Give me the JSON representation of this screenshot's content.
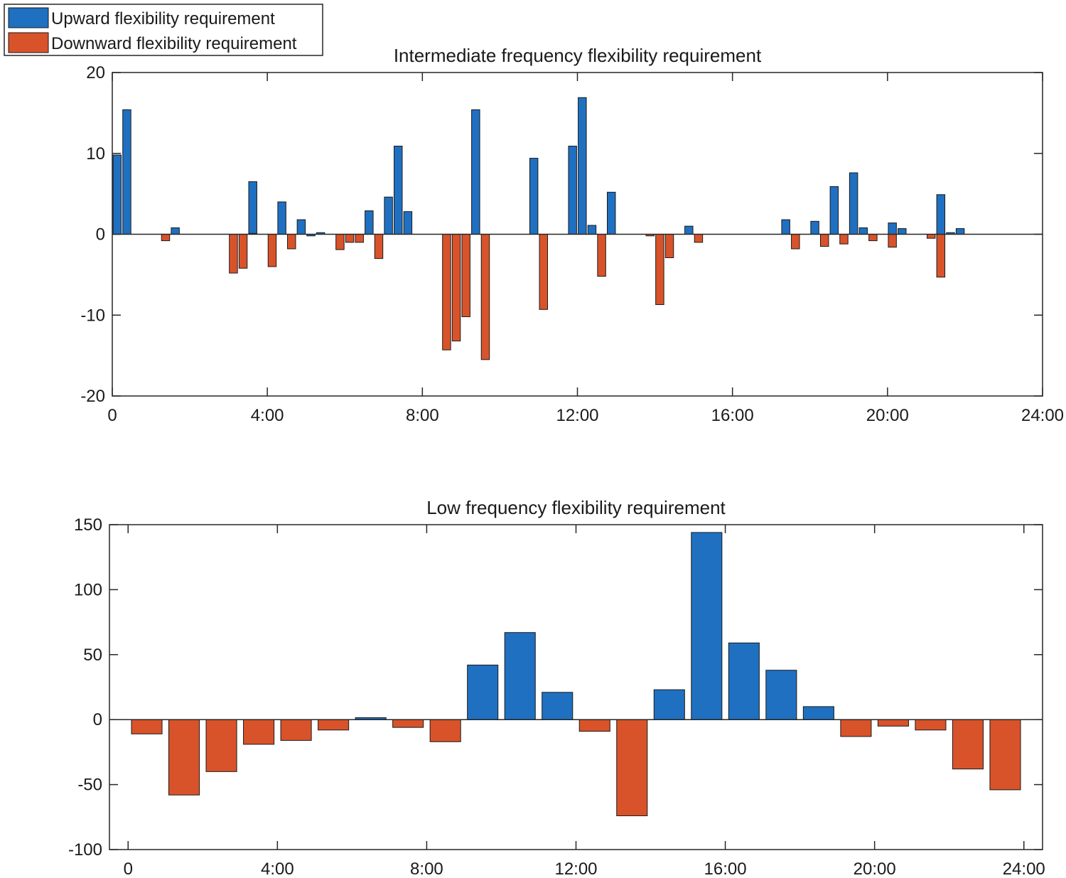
{
  "colors": {
    "up": "#1f70c1",
    "down": "#d9532a",
    "axis": "#262626",
    "bar_edge": "#1a1a1a"
  },
  "legend": {
    "entries": [
      {
        "label": "Upward flexibility requirement",
        "color": "#1f70c1"
      },
      {
        "label": "Downward flexibility requirement",
        "color": "#d9532a"
      }
    ],
    "placement": "top-left"
  },
  "chart_data": [
    {
      "type": "bar",
      "title": "Intermediate frequency flexibility requirement",
      "xlabel": "",
      "ylabel": "",
      "xlim": [
        0,
        24
      ],
      "ylim": [
        -20,
        20
      ],
      "yticks": [
        -20,
        -10,
        0,
        10,
        20
      ],
      "xticks": [
        0,
        4,
        8,
        12,
        16,
        20,
        24
      ],
      "xtick_labels": [
        "0",
        "4:00",
        "8:00",
        "12:00",
        "16:00",
        "20:00",
        "24:00"
      ],
      "bar_width_hours": 0.21,
      "series": [
        {
          "name": "Upward flexibility requirement",
          "x": [
            0.125,
            0.375,
            1.625,
            3.625,
            4.375,
            4.875,
            5.125,
            5.375,
            6.625,
            7.125,
            7.375,
            7.625,
            9.375,
            10.875,
            11.875,
            12.125,
            12.375,
            12.875,
            14.875,
            17.375,
            18.125,
            18.625,
            19.125,
            19.375,
            20.125,
            20.375,
            21.375,
            21.625,
            21.875
          ],
          "values": [
            9.8,
            15.4,
            0.8,
            6.5,
            4.0,
            1.8,
            -0.2,
            0.2,
            2.9,
            4.6,
            10.9,
            2.8,
            15.4,
            9.4,
            10.9,
            16.9,
            1.1,
            5.2,
            1.0,
            1.8,
            1.6,
            5.9,
            7.6,
            0.8,
            1.4,
            0.7,
            4.9,
            0.2,
            0.7
          ]
        },
        {
          "name": "Downward flexibility requirement",
          "x": [
            1.375,
            3.125,
            3.375,
            3.625,
            4.125,
            4.625,
            5.875,
            6.125,
            6.375,
            6.875,
            8.625,
            8.875,
            9.125,
            9.625,
            11.125,
            12.625,
            13.875,
            14.125,
            14.375,
            15.125,
            17.625,
            18.375,
            18.875,
            19.625,
            20.125,
            21.125,
            21.375
          ],
          "values": [
            -0.8,
            -4.8,
            -4.2,
            0.1,
            -4.0,
            -1.8,
            -1.9,
            -1.0,
            -1.0,
            -3.0,
            -14.3,
            -13.2,
            -10.2,
            -15.5,
            -9.3,
            -5.2,
            -0.2,
            -8.7,
            -2.9,
            -1.0,
            -1.8,
            -1.5,
            -1.2,
            -0.8,
            -1.6,
            -0.5,
            -5.3
          ]
        }
      ]
    },
    {
      "type": "bar",
      "title": "Low frequency flexibility requirement",
      "xlabel": "",
      "ylabel": "",
      "xlim": [
        -0.5,
        24.5
      ],
      "ylim": [
        -100,
        150
      ],
      "yticks": [
        -100,
        -50,
        0,
        50,
        100,
        150
      ],
      "xticks": [
        0,
        4,
        8,
        12,
        16,
        20,
        24
      ],
      "xtick_labels": [
        "0",
        "4:00",
        "8:00",
        "12:00",
        "16:00",
        "20:00",
        "24:00"
      ],
      "bar_width_hours": 0.82,
      "series": [
        {
          "name": "Upward flexibility requirement",
          "x": [
            6.5,
            9.5,
            10.5,
            11.5,
            14.5,
            15.5,
            16.5,
            17.5,
            18.5
          ],
          "values": [
            1.5,
            42,
            67,
            21,
            23,
            144,
            59,
            38,
            10
          ]
        },
        {
          "name": "Downward flexibility requirement",
          "x": [
            0.5,
            1.5,
            2.5,
            3.5,
            4.5,
            5.5,
            7.5,
            8.5,
            12.5,
            13.5,
            19.5,
            20.5,
            21.5,
            22.5,
            23.5
          ],
          "values": [
            -11,
            -58,
            -40,
            -19,
            -16,
            -8,
            -6,
            -17,
            -9,
            -74,
            -13,
            -5,
            -8,
            -38,
            -54
          ]
        }
      ]
    }
  ]
}
